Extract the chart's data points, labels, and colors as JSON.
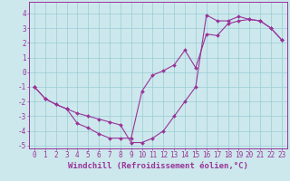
{
  "xlabel": "Windchill (Refroidissement éolien,°C)",
  "bg_color": "#cce8ec",
  "grid_color": "#99ccd4",
  "line_color": "#993399",
  "xlim": [
    -0.5,
    23.5
  ],
  "ylim": [
    -5.2,
    4.8
  ],
  "xticks": [
    0,
    1,
    2,
    3,
    4,
    5,
    6,
    7,
    8,
    9,
    10,
    11,
    12,
    13,
    14,
    15,
    16,
    17,
    18,
    19,
    20,
    21,
    22,
    23
  ],
  "yticks": [
    -5,
    -4,
    -3,
    -2,
    -1,
    0,
    1,
    2,
    3,
    4
  ],
  "series1_x": [
    0,
    1,
    2,
    3,
    4,
    5,
    6,
    7,
    8,
    9,
    10,
    11,
    12,
    13,
    14,
    15,
    16,
    17,
    18,
    19,
    20,
    21,
    22,
    23
  ],
  "series1_y": [
    -1.0,
    -1.8,
    -2.2,
    -2.5,
    -3.5,
    -3.8,
    -4.2,
    -4.5,
    -4.5,
    -4.5,
    -1.3,
    -0.2,
    0.1,
    0.5,
    1.5,
    0.3,
    2.6,
    2.5,
    3.3,
    3.5,
    3.6,
    3.5,
    3.0,
    2.2
  ],
  "series2_x": [
    0,
    1,
    2,
    3,
    4,
    5,
    6,
    7,
    8,
    9,
    10,
    11,
    12,
    13,
    14,
    15,
    16,
    17,
    18,
    19,
    20,
    21,
    22,
    23
  ],
  "series2_y": [
    -1.0,
    -1.8,
    -2.2,
    -2.5,
    -2.8,
    -3.0,
    -3.2,
    -3.4,
    -3.6,
    -4.8,
    -4.8,
    -4.5,
    -4.0,
    -3.0,
    -2.0,
    -1.0,
    3.9,
    3.5,
    3.5,
    3.8,
    3.6,
    3.5,
    3.0,
    2.2
  ],
  "xlabel_fontsize": 6.5,
  "tick_fontsize": 5.5,
  "marker": "D",
  "markersize": 2.0,
  "linewidth": 0.8
}
